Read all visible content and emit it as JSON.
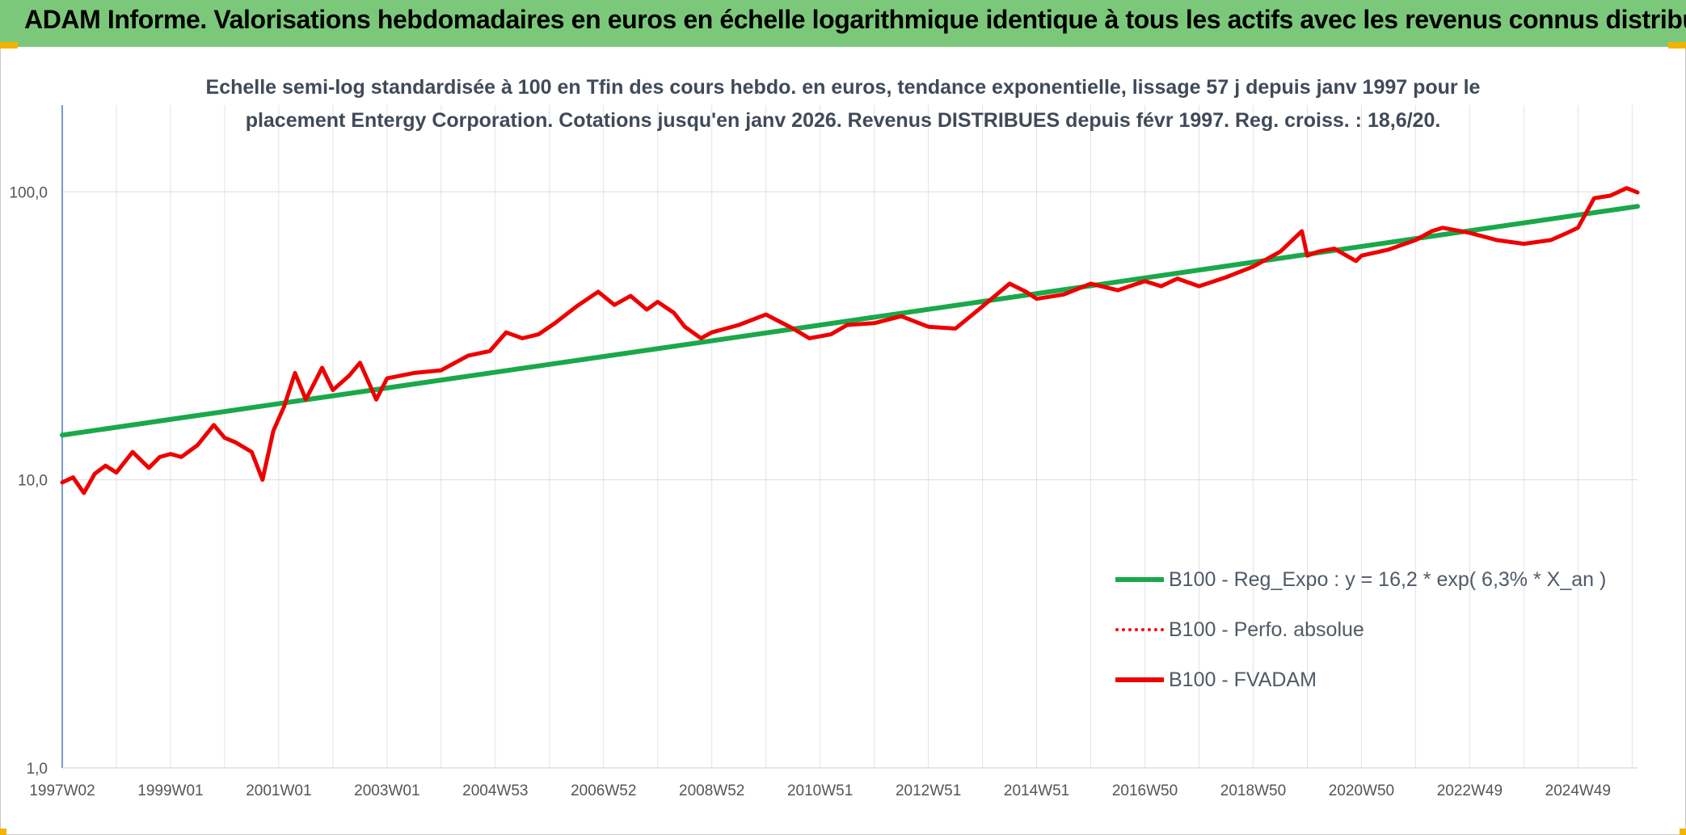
{
  "header": {
    "title": "ADAM Informe. Valorisations hebdomadaires en euros en échelle logarithmique identique à tous les actifs avec les revenus connus distribués"
  },
  "chart_data": {
    "type": "line",
    "title_lines": [
      "Echelle semi-log standardisée à 100 en Tfin des cours hebdo. en euros, tendance exponentielle, lissage 57 j depuis janv 1997 pour le",
      "placement Entergy Corporation. Cotations jusqu'en janv 2026. Revenus DISTRIBUES depuis févr 1997. Reg. croiss. : 18,6/20."
    ],
    "yscale": "log",
    "ylim": [
      1,
      200
    ],
    "y_ticks": [
      {
        "value": 1,
        "label": "1,0"
      },
      {
        "value": 10,
        "label": "10,0"
      },
      {
        "value": 100,
        "label": "100,0"
      }
    ],
    "xlim": [
      1997.0,
      2026.1
    ],
    "x_ticks": [
      {
        "value": 1997.0,
        "label": "1997W02"
      },
      {
        "value": 1999.0,
        "label": "1999W01"
      },
      {
        "value": 2001.0,
        "label": "2001W01"
      },
      {
        "value": 2003.0,
        "label": "2003W01"
      },
      {
        "value": 2005.0,
        "label": "2004W53"
      },
      {
        "value": 2007.0,
        "label": "2006W52"
      },
      {
        "value": 2009.0,
        "label": "2008W52"
      },
      {
        "value": 2011.0,
        "label": "2010W51"
      },
      {
        "value": 2013.0,
        "label": "2012W51"
      },
      {
        "value": 2015.0,
        "label": "2014W51"
      },
      {
        "value": 2017.0,
        "label": "2016W50"
      },
      {
        "value": 2019.0,
        "label": "2018W50"
      },
      {
        "value": 2021.0,
        "label": "2020W50"
      },
      {
        "value": 2023.0,
        "label": "2022W49"
      },
      {
        "value": 2025.0,
        "label": "2024W49"
      }
    ],
    "grid": true,
    "legend_position": "bottom-right",
    "series": [
      {
        "name": "B100 - Reg_Expo : y = 16,2 * exp( 6,3% *  X_an )",
        "color": "#1aa84a",
        "style": "solid",
        "x": [
          1997.0,
          2026.1
        ],
        "y": [
          14.3,
          89.0
        ]
      },
      {
        "name": "B100 - Perfo. absolue",
        "color": "#ff0000",
        "style": "dotted",
        "x": [],
        "y": []
      },
      {
        "name": "B100 - FVADAM",
        "color": "#ee0000",
        "style": "solid",
        "x": [
          1997.0,
          1997.2,
          1997.4,
          1997.6,
          1997.8,
          1998.0,
          1998.3,
          1998.6,
          1998.8,
          1999.0,
          1999.2,
          1999.5,
          1999.8,
          2000.0,
          2000.2,
          2000.5,
          2000.7,
          2000.9,
          2001.1,
          2001.3,
          2001.5,
          2001.8,
          2002.0,
          2002.3,
          2002.5,
          2002.8,
          2003.0,
          2003.5,
          2004.0,
          2004.5,
          2004.9,
          2005.2,
          2005.5,
          2005.8,
          2006.1,
          2006.5,
          2006.9,
          2007.2,
          2007.5,
          2007.8,
          2008.0,
          2008.3,
          2008.5,
          2008.8,
          2009.0,
          2009.5,
          2010.0,
          2010.5,
          2010.8,
          2011.2,
          2011.5,
          2012.0,
          2012.5,
          2013.0,
          2013.5,
          2014.0,
          2014.5,
          2014.8,
          2015.0,
          2015.5,
          2016.0,
          2016.5,
          2017.0,
          2017.3,
          2017.6,
          2018.0,
          2018.5,
          2019.0,
          2019.5,
          2019.9,
          2020.0,
          2020.2,
          2020.5,
          2020.9,
          2021.0,
          2021.5,
          2022.0,
          2022.3,
          2022.5,
          2023.0,
          2023.5,
          2024.0,
          2024.5,
          2024.8,
          2025.0,
          2025.3,
          2025.6,
          2025.9,
          2026.1
        ],
        "y": [
          9.8,
          10.2,
          9.0,
          10.5,
          11.2,
          10.6,
          12.5,
          11.0,
          12.0,
          12.3,
          12.0,
          13.2,
          15.5,
          14.0,
          13.5,
          12.5,
          10.0,
          14.8,
          18.0,
          23.5,
          19.0,
          24.5,
          20.5,
          23.0,
          25.5,
          19.0,
          22.5,
          23.5,
          24.0,
          27.0,
          28.0,
          32.5,
          31.0,
          32.0,
          35.0,
          40.0,
          45.0,
          40.5,
          43.5,
          39.0,
          41.5,
          38.0,
          34.0,
          31.0,
          32.5,
          34.5,
          37.5,
          33.5,
          31.0,
          32.0,
          34.5,
          35.0,
          37.0,
          34.0,
          33.5,
          40.0,
          48.0,
          45.0,
          42.5,
          44.0,
          48.0,
          45.5,
          49.0,
          47.0,
          50.0,
          47.0,
          50.5,
          55.0,
          62.0,
          73.0,
          60.0,
          62.0,
          63.5,
          57.5,
          60.0,
          63.0,
          68.0,
          73.0,
          75.0,
          72.0,
          68.0,
          66.0,
          68.0,
          72.0,
          75.0,
          95.0,
          97.0,
          103.0,
          99.5
        ]
      }
    ]
  }
}
